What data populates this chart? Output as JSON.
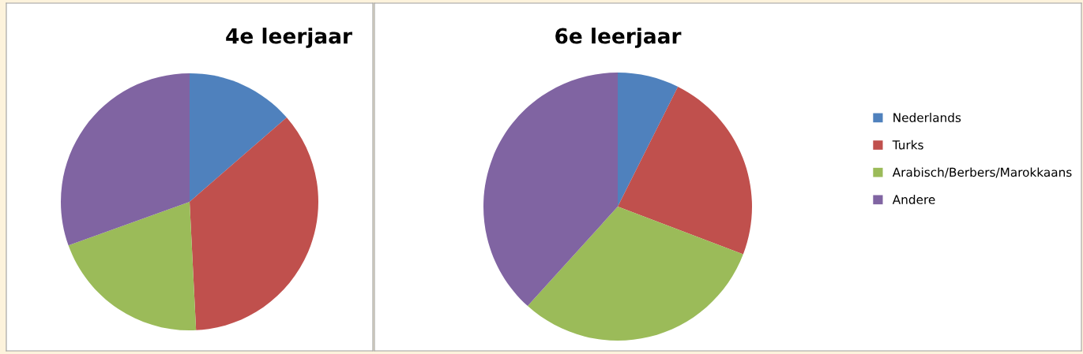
{
  "chart_data": [
    {
      "type": "pie",
      "title": "4e leerjaar",
      "categories": [
        null,
        null,
        null,
        null
      ],
      "values": [
        13.6,
        35.6,
        20.3,
        30.5
      ],
      "colors": [
        "#4f81bd",
        "#c0504d",
        "#9bbb59",
        "#8064a2"
      ],
      "legend": false
    },
    {
      "type": "pie",
      "title": "6e leerjaar",
      "categories": [
        "Nederlands",
        "Turks",
        "Arabisch/Berbers/Marokkaans",
        "Andere"
      ],
      "values": [
        7.4,
        23.4,
        30.9,
        38.3
      ],
      "colors": [
        "#4f81bd",
        "#c0504d",
        "#9bbb59",
        "#8064a2"
      ],
      "legend": "right"
    }
  ]
}
